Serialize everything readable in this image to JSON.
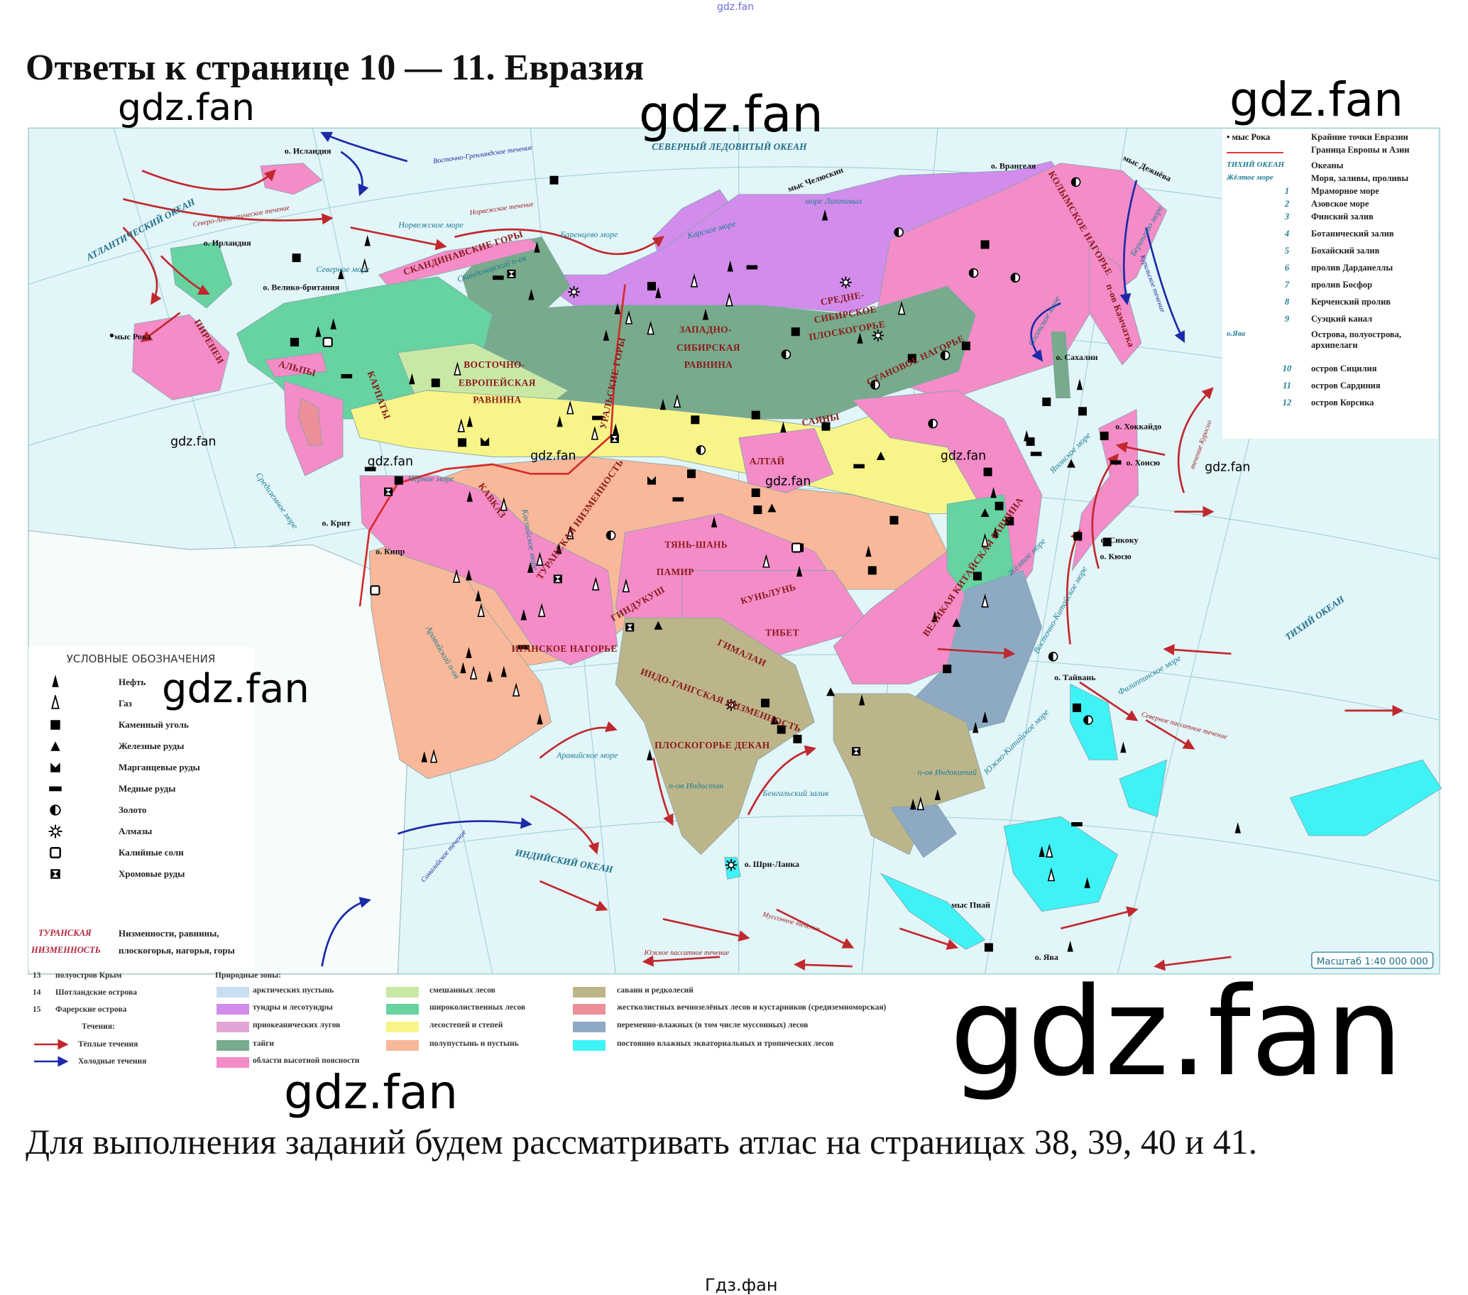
{
  "header": {
    "top_watermark": "gdz.fan",
    "title": "Ответы к странице 10 — 11. Евразия"
  },
  "watermarks": [
    "gdz.fan",
    "gdz.fan",
    "gdz.fan",
    "gdz.fan",
    "gdz.fan",
    "gdz.fan",
    "gdz.fan",
    "gdz.fan",
    "gdz.fan",
    "gdz.fan",
    "gdz.fan",
    "gdz.fan",
    "gdz.fan"
  ],
  "map": {
    "scale": "Масштаб 1:40 000 000",
    "zone_colors": {
      "arctic_desert": "#c9def2",
      "tundra": "#d28cec",
      "meadows": "#e0a5d5",
      "taiga": "#78aa8c",
      "altitude": "#f48cc8",
      "mixed": "#c9e8a6",
      "broadleaf": "#66d3a0",
      "steppe": "#f7f589",
      "desert": "#f9b899",
      "savanna": "#bdb58a",
      "mediterranean": "#ec8f98",
      "monsoon": "#8ea9c4",
      "rainforest": "#3ff2f5",
      "ocean": "#e2f5f8"
    },
    "labels": {
      "arctic_ocean": "СЕВЕРНЫЙ ЛЕДОВИТЫЙ ОКЕАН",
      "atlantic": "АТЛАНТИЧЕСКИЙ ОКЕАН",
      "iceland": "о. Исландия",
      "ireland": "о. Ирландия",
      "britain": "о. Велико-британия",
      "cape_roca": "мыс Рока",
      "pyrenees": "ПИРЕНЕИ",
      "alps": "АЛЬПЫ",
      "carpathians": "КАРПАТЫ",
      "scandinavian_mts": "СКАНДИНАВСКИЕ ГОРЫ",
      "scandinavian_pen": "Скандинавский п-ов",
      "east_european_1": "ВОСТОЧНО-",
      "east_european_2": "ЕВРОПЕЙСКАЯ",
      "east_european_3": "РАВНИНА",
      "urals": "УРАЛЬСКИЕ ГОРЫ",
      "west_siberian_1": "ЗАПАДНО-",
      "west_siberian_2": "СИБИРСКАЯ",
      "west_siberian_3": "РАВНИНА",
      "central_siberian_1": "СРЕДНЕ-",
      "central_siberian_2": "СИБИРСКОЕ",
      "central_siberian_3": "ПЛОСКОГОРЬЕ",
      "stanovoe": "СТАНОВОЕ НАГОРЬЕ",
      "kolyma": "КОЛЫМСКОЕ НАГОРЬЕ",
      "chelyuskin": "мыс Челюскин",
      "dezhnev": "мыс Дежнёва",
      "wrangel": "о. Врангеля",
      "laptev": "море Лаптевых",
      "kara": "Карское море",
      "barents": "Баренцево море",
      "norwegian_sea": "Норвежское море",
      "north_sea": "Северное море",
      "black_sea": "Чёрное море",
      "caspian": "Каспийское море",
      "mediterranean": "Средиземное море",
      "caucasus": "КАВКАЗ",
      "turan": "ТУРАНСКАЯ НИЗМЕННОСТЬ",
      "tianshan": "ТЯНЬ-ШАНЬ",
      "pamir": "ПАМИР",
      "hindukush": "ГИНДУКУШ",
      "kunlun": "КУНЬЛУНЬ",
      "tibet": "ТИБЕТ",
      "himalaya": "ГИМАЛАИ",
      "iranian": "ИРАНСКОЕ НАГОРЬЕ",
      "altai": "АЛТАЙ",
      "sayan": "САЯНЫ",
      "great_china": "ВЕЛИКАЯ КИТАЙСКАЯ РАВНИНА",
      "indo_gangetic": "ИНДО-ГАНГСКАЯ НИЗМЕННОСТЬ",
      "deccan": "ПЛОСКОГОРЬЕ ДЕКАН",
      "arabian_pen": "Аравийский п-ов",
      "hindustan": "п-ов Индостан",
      "indochina": "п-ов Индокитай",
      "arabian_sea": "Аравийское море",
      "bengal": "Бенгальский залив",
      "indian_ocean": "ИНДИЙСКИЙ ОКЕАН",
      "pacific": "ТИХИЙ ОКЕАН",
      "okhotsk": "Охотское море",
      "bering_sea": "Берингово море",
      "japan_sea": "Японское море",
      "yellow_sea": "Жёлтое море",
      "east_china_sea": "Восточно-Китайское море",
      "south_china_sea": "Южно-Китайское море",
      "philippine_sea": "Филиппинское море",
      "sakhalin": "о. Сахалин",
      "hokkaido": "о. Хоккайдо",
      "honshu": "о. Хонсю",
      "shikoku": "о. Сикоку",
      "kyushu": "о. Кюсю",
      "taiwan": "о. Тайвань",
      "java": "о. Ява",
      "piai": "мыс Пиай",
      "sri_lanka": "о. Шри-Ланка",
      "crete": "о. Крит",
      "cyprus": "о. Кипр",
      "kamchatka": "п-ов Камчатка",
      "north_atlantic_current": "Северо-Атлантическое течение",
      "norwegian_current": "Норвежское течение",
      "east_greenland_current": "Восточно-Гренландское течение",
      "kuroshio": "течение Куросио",
      "kuril_current": "Курильское течение",
      "somali_current": "Сомалийское течение",
      "monsoon_current": "Муссонное течение",
      "south_trade_current": "Южное пассатное течение",
      "north_trade_current": "Северное пассатное течение"
    }
  },
  "right_legend": {
    "rows": [
      {
        "key": "• мыс Рока",
        "text": "Крайние точки Евразии"
      },
      {
        "key": "",
        "text": "Граница Европы и Азии"
      },
      {
        "key": "ТИХИЙ ОКЕАН",
        "text": "Океаны"
      },
      {
        "key": "Жёлтое море",
        "text": "Моря, заливы, проливы"
      },
      {
        "num": "1",
        "text": "Мраморное море"
      },
      {
        "num": "2",
        "text": "Азовское море"
      },
      {
        "num": "3",
        "text": "Финский залив"
      },
      {
        "num": "4",
        "text": "Ботанический залив"
      },
      {
        "num": "5",
        "text": "Бохайский залив"
      },
      {
        "num": "6",
        "text": "пролив Дарданеллы"
      },
      {
        "num": "7",
        "text": "пролив Босфор"
      },
      {
        "num": "8",
        "text": "Керченский пролив"
      },
      {
        "num": "9",
        "text": "Суэцкий канал"
      },
      {
        "key": "о.Ява",
        "text": "Острова, полуострова, архипелаги"
      },
      {
        "num": "10",
        "text": "остров Сицилия"
      },
      {
        "num": "11",
        "text": "остров Сардиния"
      },
      {
        "num": "12",
        "text": "остров Корсика"
      }
    ],
    "border_color": "#e23b3b"
  },
  "left_legend": {
    "title": "УСЛОВНЫЕ ОБОЗНАЧЕНИЯ",
    "items": [
      {
        "icon": "oil",
        "label": "Нефть"
      },
      {
        "icon": "gas",
        "label": "Газ"
      },
      {
        "icon": "coal",
        "label": "Каменный уголь"
      },
      {
        "icon": "iron",
        "label": "Железные руды"
      },
      {
        "icon": "manganese",
        "label": "Марганцевые руды"
      },
      {
        "icon": "copper",
        "label": "Медные руды"
      },
      {
        "icon": "gold",
        "label": "Золото"
      },
      {
        "icon": "diamonds",
        "label": "Алмазы"
      },
      {
        "icon": "potash",
        "label": "Калийные соли"
      },
      {
        "icon": "chromium",
        "label": "Хромовые руды"
      }
    ],
    "relief_sample_1": "ТУРАНСКАЯ",
    "relief_sample_2": "НИЗМЕННОСТЬ",
    "relief_text_1": "Низменности, равнины,",
    "relief_text_2": "плоскогорья, нагорья, горы"
  },
  "bottom_legend": {
    "numbered": [
      {
        "num": "13",
        "text": "полуостров Крым"
      },
      {
        "num": "14",
        "text": "Шотландские острова"
      },
      {
        "num": "15",
        "text": "Фарерские острова"
      }
    ],
    "currents_title": "Течения:",
    "warm": "Тёплые течения",
    "cold": "Холодные течения",
    "warm_color": "#c0282d",
    "cold_color": "#1c2aa8",
    "zones_title": "Природные зоны:",
    "zones": [
      {
        "label": "арктических пустынь",
        "color": "#c9def2"
      },
      {
        "label": "тундры и лесотундры",
        "color": "#d28cec"
      },
      {
        "label": "приокеанических лугов",
        "color": "#e0a5d5"
      },
      {
        "label": "тайги",
        "color": "#78aa8c"
      },
      {
        "label": "области высотной поясности",
        "color": "#f48cc8"
      },
      {
        "label": "смешанных лесов",
        "color": "#c9e8a6"
      },
      {
        "label": "широколиственных лесов",
        "color": "#66d3a0"
      },
      {
        "label": "лесостепей и степей",
        "color": "#f7f589"
      },
      {
        "label": "полупустынь и пустынь",
        "color": "#f9b899"
      },
      {
        "label": "саванн и редколесий",
        "color": "#bdb58a"
      },
      {
        "label": "жестколистных вечнозелёных лесов и кустарников (средиземноморская)",
        "color": "#ec8f98"
      },
      {
        "label": "переменно-влажных (в том числе муссонных) лесов",
        "color": "#8ea9c4"
      },
      {
        "label": "постоянно влажных экваториальных и тропических лесов",
        "color": "#3ff2f5"
      }
    ]
  },
  "body": {
    "paragraph": "Для выполнения заданий будем рассматривать атлас на страницах 38, 39, 40 и 41."
  },
  "footer": {
    "text": "Гдз.фан"
  }
}
